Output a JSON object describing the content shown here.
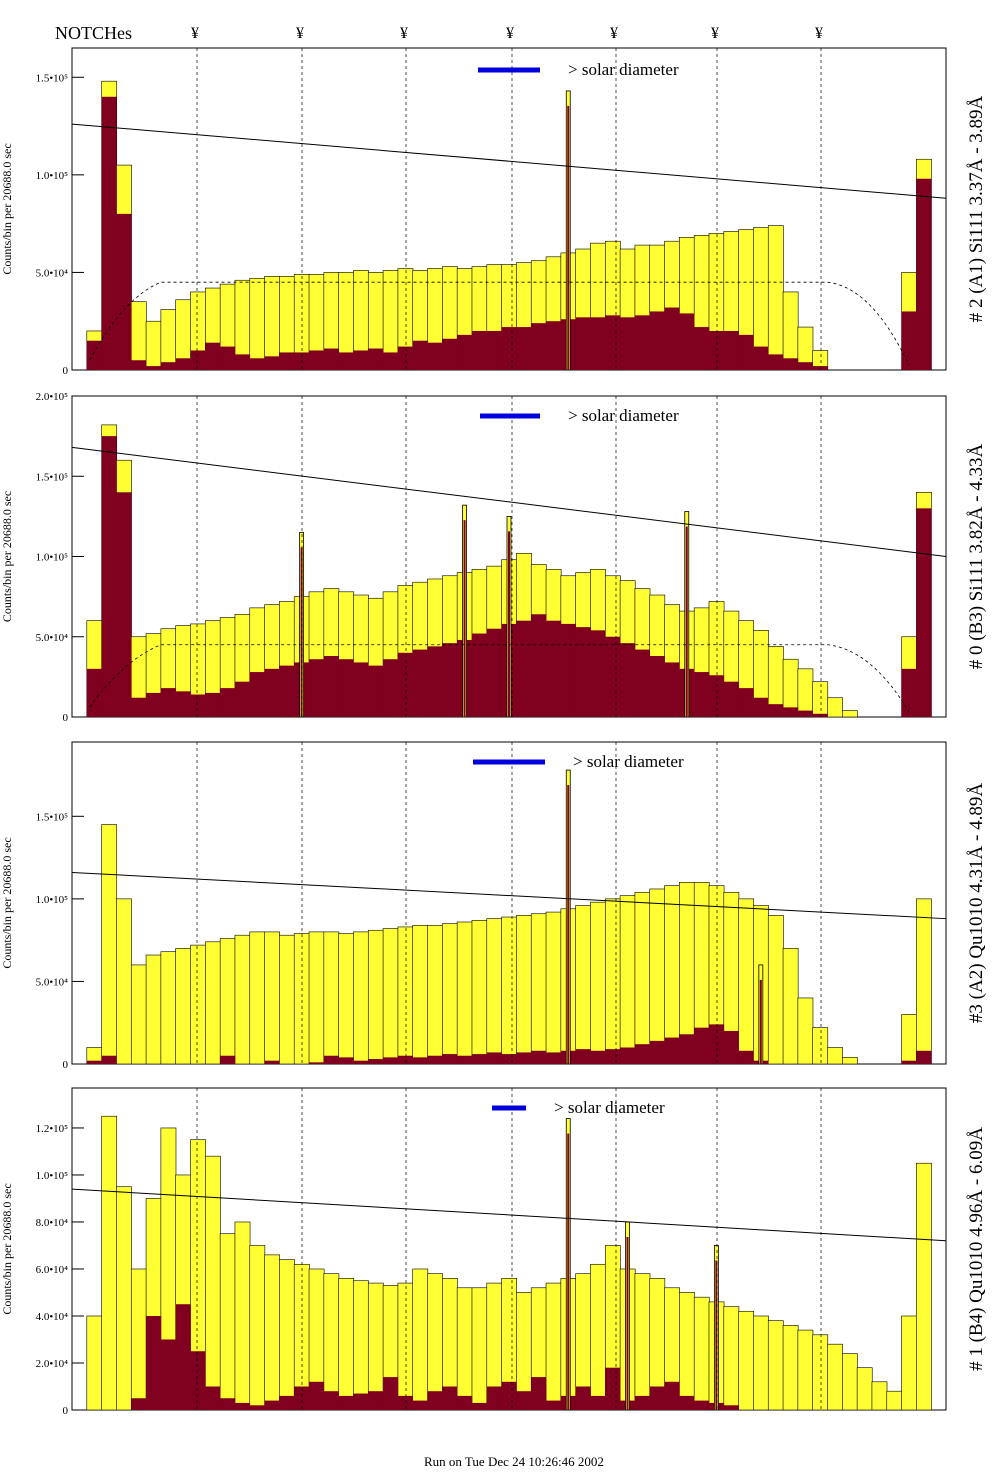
{
  "header": {
    "label": "NOTCHes",
    "notch_symbol": "¥",
    "footer": "Run on Tue Dec 24 10:26:46 2002"
  },
  "colors": {
    "total_fill": "#ffff33",
    "source_fill": "#800020",
    "legend_bar": "#0000dd",
    "legend_text": "#0000cc"
  },
  "chart_data": [
    {
      "type": "bar",
      "title": "# 2 (A1) Si111  3.37Å - 3.89Å",
      "ylabel": "Counts/bin per  20688.0 sec",
      "ylim": [
        0,
        165000
      ],
      "yticks": [
        {
          "v": 0,
          "t": "0"
        },
        {
          "v": 50000,
          "t": "5.0•10⁴"
        },
        {
          "v": 100000,
          "t": "1.0•10⁵"
        },
        {
          "v": 150000,
          "t": "1.5•10⁵"
        }
      ],
      "legend": "> solar diameter",
      "trend": [
        126000,
        88000
      ],
      "model_level": 45000,
      "series": [
        {
          "name": "total",
          "values": [
            0,
            20000,
            148000,
            105000,
            35000,
            25000,
            31000,
            36000,
            40000,
            42000,
            44000,
            46000,
            47000,
            48000,
            48000,
            49000,
            49000,
            50000,
            50000,
            51000,
            50000,
            51000,
            52000,
            51000,
            52000,
            53000,
            52000,
            53000,
            54000,
            54000,
            55000,
            56000,
            58000,
            60000,
            62000,
            65000,
            66000,
            62000,
            64000,
            64000,
            66000,
            68000,
            69000,
            70000,
            71000,
            72000,
            73000,
            74000,
            40000,
            22000,
            10000,
            0,
            0,
            0,
            0,
            0,
            50000,
            108000,
            0
          ]
        },
        {
          "name": "source",
          "values": [
            0,
            15000,
            140000,
            80000,
            5000,
            2000,
            4000,
            6000,
            10000,
            14000,
            12000,
            8000,
            6000,
            7000,
            9000,
            9000,
            10000,
            11000,
            9000,
            10000,
            11000,
            9000,
            12000,
            15000,
            14000,
            16000,
            18000,
            20000,
            20000,
            22000,
            22000,
            24000,
            25000,
            26000,
            27000,
            27000,
            28000,
            27000,
            28000,
            30000,
            32000,
            29000,
            22000,
            20000,
            20000,
            18000,
            12000,
            8000,
            6000,
            4000,
            2000,
            0,
            0,
            0,
            0,
            0,
            30000,
            98000,
            0
          ]
        }
      ],
      "spike_cats": [
        33
      ],
      "spike_values": [
        143000
      ]
    },
    {
      "type": "bar",
      "title": "# 0 (B3) Si111  3.82Å - 4.33Å",
      "ylabel": "Counts/bin per  20688.0 sec",
      "ylim": [
        0,
        200000
      ],
      "yticks": [
        {
          "v": 0,
          "t": "0"
        },
        {
          "v": 50000,
          "t": "5.0•10⁴"
        },
        {
          "v": 100000,
          "t": "1.0•10⁵"
        },
        {
          "v": 150000,
          "t": "1.5•10⁵"
        },
        {
          "v": 200000,
          "t": "2.0•10⁵"
        }
      ],
      "legend": "> solar diameter",
      "trend": [
        168000,
        100000
      ],
      "model_level": 45000,
      "series": [
        {
          "name": "total",
          "values": [
            0,
            60000,
            182000,
            160000,
            50000,
            52000,
            55000,
            57000,
            58000,
            60000,
            62000,
            64000,
            68000,
            70000,
            72000,
            75000,
            78000,
            80000,
            78000,
            76000,
            74000,
            78000,
            82000,
            84000,
            86000,
            88000,
            90000,
            92000,
            94000,
            98000,
            102000,
            95000,
            92000,
            88000,
            90000,
            92000,
            88000,
            85000,
            80000,
            76000,
            70000,
            66000,
            68000,
            72000,
            66000,
            60000,
            54000,
            44000,
            36000,
            30000,
            22000,
            12000,
            4000,
            0,
            0,
            0,
            50000,
            140000,
            0
          ]
        },
        {
          "name": "source",
          "values": [
            0,
            30000,
            175000,
            140000,
            12000,
            15000,
            18000,
            16000,
            14000,
            15000,
            18000,
            22000,
            28000,
            30000,
            32000,
            34000,
            36000,
            38000,
            36000,
            34000,
            32000,
            36000,
            40000,
            42000,
            44000,
            46000,
            48000,
            52000,
            55000,
            58000,
            60000,
            64000,
            60000,
            58000,
            56000,
            54000,
            50000,
            46000,
            42000,
            38000,
            34000,
            30000,
            28000,
            26000,
            22000,
            18000,
            12000,
            8000,
            6000,
            4000,
            2000,
            0,
            0,
            0,
            0,
            0,
            30000,
            130000,
            0
          ]
        }
      ],
      "spike_cats": [
        15,
        26,
        29,
        41
      ],
      "spike_values": [
        115000,
        132000,
        125000,
        128000
      ]
    },
    {
      "type": "bar",
      "title": "#3 (A2) Qu1010  4.31Å - 4.89Å",
      "ylabel": "Counts/bin per  20688.0 sec",
      "ylim": [
        0,
        195000
      ],
      "yticks": [
        {
          "v": 0,
          "t": "0"
        },
        {
          "v": 50000,
          "t": "5.0•10⁴"
        },
        {
          "v": 100000,
          "t": "1.0•10⁵"
        },
        {
          "v": 150000,
          "t": "1.5•10⁵"
        }
      ],
      "legend": "> solar diameter",
      "trend": [
        116000,
        88000
      ],
      "model_level": null,
      "series": [
        {
          "name": "total",
          "values": [
            0,
            10000,
            145000,
            100000,
            60000,
            66000,
            68000,
            70000,
            72000,
            74000,
            76000,
            78000,
            80000,
            80000,
            78000,
            79000,
            80000,
            80000,
            79000,
            80000,
            81000,
            82000,
            83000,
            84000,
            84000,
            85000,
            86000,
            87000,
            88000,
            89000,
            90000,
            91000,
            92000,
            94000,
            96000,
            98000,
            100000,
            102000,
            104000,
            106000,
            108000,
            110000,
            110000,
            108000,
            104000,
            100000,
            96000,
            90000,
            70000,
            40000,
            22000,
            10000,
            4000,
            0,
            0,
            0,
            30000,
            100000,
            0
          ]
        },
        {
          "name": "source",
          "values": [
            0,
            2000,
            5000,
            0,
            0,
            0,
            0,
            0,
            0,
            0,
            5000,
            0,
            0,
            2000,
            0,
            0,
            1000,
            5000,
            4000,
            2000,
            3000,
            4000,
            5000,
            4000,
            5000,
            6000,
            5000,
            6000,
            7000,
            6000,
            7000,
            8000,
            7000,
            8000,
            9000,
            8000,
            9000,
            10000,
            12000,
            14000,
            16000,
            18000,
            22000,
            24000,
            20000,
            8000,
            2000,
            0,
            0,
            0,
            0,
            0,
            0,
            0,
            0,
            0,
            2000,
            8000,
            0
          ]
        }
      ],
      "spike_cats": [
        33,
        46
      ],
      "spike_values": [
        178000,
        60000
      ]
    },
    {
      "type": "bar",
      "title": "# 1 (B4) Qu1010 4.96Å - 6.09Å",
      "ylabel": "Counts/bin per  20688.0 sec",
      "ylim": [
        0,
        137000
      ],
      "yticks": [
        {
          "v": 0,
          "t": "0"
        },
        {
          "v": 20000,
          "t": "2.0•10⁴"
        },
        {
          "v": 40000,
          "t": "4.0•10⁴"
        },
        {
          "v": 60000,
          "t": "6.0•10⁴"
        },
        {
          "v": 80000,
          "t": "8.0•10⁴"
        },
        {
          "v": 100000,
          "t": "1.0•10⁵"
        },
        {
          "v": 120000,
          "t": "1.2•10⁵"
        }
      ],
      "legend": "> solar diameter",
      "trend": [
        94000,
        72000
      ],
      "model_level": null,
      "series": [
        {
          "name": "total",
          "values": [
            0,
            40000,
            125000,
            95000,
            60000,
            90000,
            120000,
            100000,
            115000,
            108000,
            75000,
            80000,
            70000,
            66000,
            64000,
            62000,
            60000,
            58000,
            56000,
            55000,
            54000,
            53000,
            54000,
            60000,
            58000,
            56000,
            52000,
            52000,
            54000,
            56000,
            50000,
            52000,
            54000,
            56000,
            58000,
            62000,
            70000,
            60000,
            58000,
            56000,
            52000,
            50000,
            48000,
            46000,
            44000,
            42000,
            40000,
            38000,
            36000,
            34000,
            32000,
            28000,
            24000,
            18000,
            12000,
            8000,
            40000,
            105000,
            0
          ]
        },
        {
          "name": "source",
          "values": [
            0,
            0,
            0,
            0,
            5000,
            40000,
            30000,
            45000,
            25000,
            10000,
            5000,
            3000,
            2000,
            4000,
            6000,
            10000,
            12000,
            8000,
            6000,
            7000,
            8000,
            14000,
            6000,
            4000,
            8000,
            10000,
            6000,
            3000,
            10000,
            12000,
            8000,
            14000,
            4000,
            6000,
            10000,
            6000,
            18000,
            4000,
            6000,
            10000,
            12000,
            6000,
            4000,
            3000,
            2000,
            0,
            0,
            0,
            0,
            0,
            0,
            0,
            0,
            0,
            0,
            0,
            0,
            0,
            0
          ]
        }
      ],
      "spike_cats": [
        33,
        37,
        43
      ],
      "spike_values": [
        124000,
        80000,
        70000
      ]
    }
  ]
}
